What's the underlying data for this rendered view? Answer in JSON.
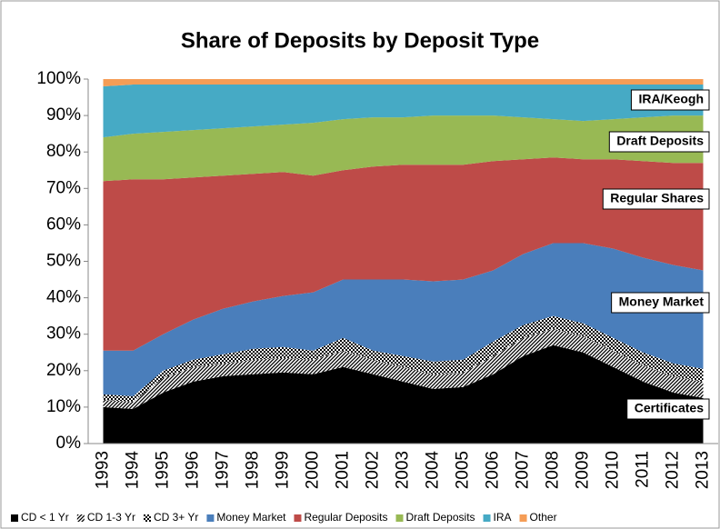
{
  "chart_data": {
    "type": "stacked_area",
    "title": "Share of Deposits by Deposit Type",
    "categories": [
      "1993",
      "1994",
      "1995",
      "1996",
      "1997",
      "1998",
      "1999",
      "2000",
      "2001",
      "2002",
      "2003",
      "2004",
      "2005",
      "2006",
      "2007",
      "2008",
      "2009",
      "2010",
      "2011",
      "2012",
      "2013"
    ],
    "series": [
      {
        "name": "CD < 1 Yr",
        "color": "#000000",
        "values": [
          10,
          9.5,
          14,
          17,
          18.5,
          19,
          19.5,
          19,
          21,
          19,
          17,
          15,
          15.5,
          19,
          24,
          27,
          25,
          21,
          17,
          14,
          12.5
        ]
      },
      {
        "name": "CD 1-3 Yr",
        "color": "#555555",
        "values": [
          2,
          2,
          4,
          4,
          3.5,
          4,
          4,
          4,
          4.5,
          4,
          4,
          4,
          4,
          5,
          5,
          4.5,
          4.5,
          4.5,
          4.5,
          4.5,
          4.5
        ]
      },
      {
        "name": "CD 3+ Yr",
        "color": "#222222",
        "values": [
          1.5,
          1.5,
          2,
          2,
          2.5,
          3,
          3,
          2.5,
          3.5,
          2.5,
          3,
          3.5,
          3.5,
          4,
          3.5,
          3.5,
          3.5,
          3.5,
          3.5,
          3.5,
          3.5
        ]
      },
      {
        "name": "Money Market",
        "color": "#4a7ebb",
        "values": [
          12,
          12.5,
          10,
          11,
          12.5,
          13,
          14,
          16,
          16,
          19.5,
          21,
          22,
          22,
          19.5,
          19.5,
          20,
          22,
          24.5,
          26,
          27,
          27
        ]
      },
      {
        "name": "Regular Deposits",
        "color": "#be4b48",
        "values": [
          46.5,
          47,
          42.5,
          39,
          36.5,
          35,
          34,
          32,
          30,
          31,
          31.5,
          32,
          31.5,
          30,
          26,
          23.5,
          23,
          24.5,
          26.5,
          28,
          29.5
        ]
      },
      {
        "name": "Draft Deposits",
        "color": "#98b954",
        "values": [
          12,
          12.5,
          13,
          13,
          13,
          13,
          13,
          14.5,
          14,
          13.5,
          13,
          13.5,
          13.5,
          12.5,
          11.5,
          10.5,
          10.5,
          11,
          12,
          13,
          13
        ]
      },
      {
        "name": "IRA",
        "color": "#46aac5",
        "values": [
          14,
          13.5,
          13,
          12.5,
          12,
          11.5,
          11,
          10.5,
          9.5,
          9,
          9,
          8.5,
          8.5,
          8.5,
          9,
          9.5,
          10,
          9.5,
          9,
          8.5,
          8.5
        ]
      },
      {
        "name": "Other",
        "color": "#f59d56",
        "values": [
          2,
          1.5,
          1.5,
          1.5,
          1.5,
          1.5,
          1.5,
          1.5,
          1.5,
          1.5,
          1.5,
          1.5,
          1.5,
          1.5,
          1.5,
          1.5,
          1.5,
          1.5,
          1.5,
          1.5,
          1.5
        ]
      }
    ],
    "ylim": [
      0,
      100
    ],
    "yticks": [
      {
        "value": 0,
        "label": "0%"
      },
      {
        "value": 10,
        "label": "10%"
      },
      {
        "value": 20,
        "label": "20%"
      },
      {
        "value": 30,
        "label": "30%"
      },
      {
        "value": 40,
        "label": "40%"
      },
      {
        "value": 50,
        "label": "50%"
      },
      {
        "value": 60,
        "label": "60%"
      },
      {
        "value": 70,
        "label": "70%"
      },
      {
        "value": 80,
        "label": "80%"
      },
      {
        "value": 90,
        "label": "90%"
      },
      {
        "value": 100,
        "label": "100%"
      }
    ],
    "annotations": [
      "IRA/Keogh",
      "Draft Deposits",
      "Regular Shares",
      "Money Market",
      "Certificates"
    ],
    "legend": "bottom"
  }
}
